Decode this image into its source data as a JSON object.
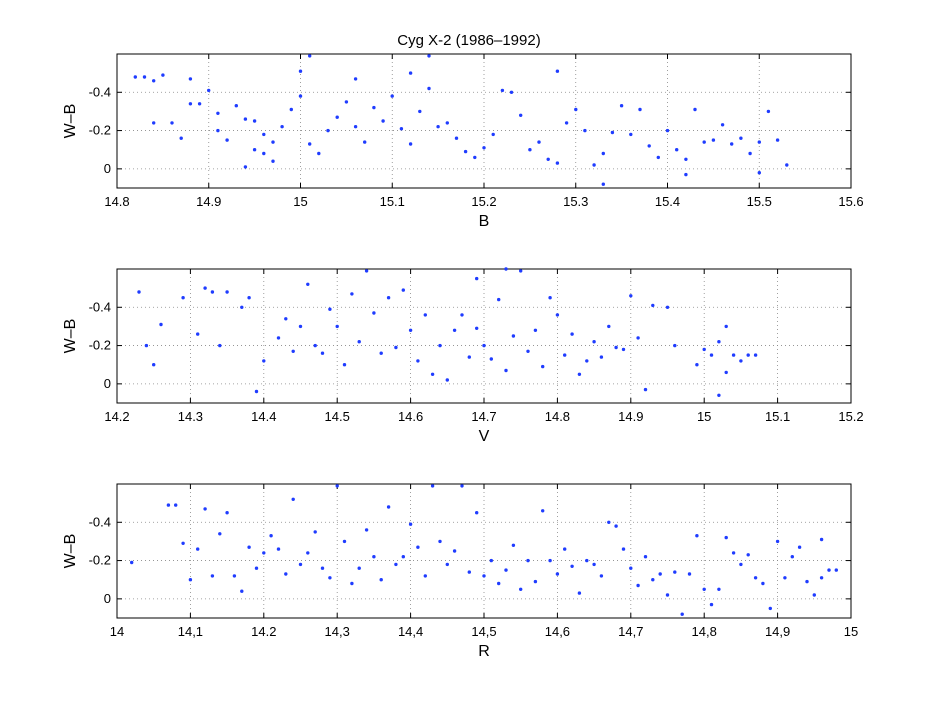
{
  "figure": {
    "title": "Cyg X-2 (1986–1992)"
  },
  "chart_data": [
    {
      "type": "scatter",
      "title": "Cyg X-2 (1986–1992)",
      "xlabel": "B",
      "ylabel": "W–B",
      "xlim": [
        14.8,
        15.6
      ],
      "ylim": [
        0.1,
        -0.6
      ],
      "y_axis_reversed": true,
      "grid": true,
      "marker_color": "#1f3cff",
      "xticks": [
        14.8,
        14.9,
        15.0,
        15.1,
        15.2,
        15.3,
        15.4,
        15.5,
        15.6
      ],
      "xtick_labels": [
        "14.8",
        "14.9",
        "15",
        "15.1",
        "15.2",
        "15.3",
        "15.4",
        "15.5",
        "15.6"
      ],
      "yticks": [
        -0.4,
        -0.2,
        0
      ],
      "ytick_labels": [
        "-0.4",
        "-0.2",
        "0"
      ],
      "points": [
        [
          14.82,
          -0.48
        ],
        [
          14.83,
          -0.48
        ],
        [
          14.84,
          -0.46
        ],
        [
          14.85,
          -0.49
        ],
        [
          14.84,
          -0.24
        ],
        [
          14.86,
          -0.24
        ],
        [
          14.87,
          -0.16
        ],
        [
          14.88,
          -0.34
        ],
        [
          14.89,
          -0.34
        ],
        [
          14.88,
          -0.47
        ],
        [
          14.9,
          -0.41
        ],
        [
          14.91,
          -0.2
        ],
        [
          14.91,
          -0.29
        ],
        [
          14.92,
          -0.15
        ],
        [
          14.93,
          -0.33
        ],
        [
          14.94,
          -0.26
        ],
        [
          14.95,
          -0.25
        ],
        [
          14.96,
          -0.18
        ],
        [
          14.97,
          -0.14
        ],
        [
          14.95,
          -0.1
        ],
        [
          14.96,
          -0.08
        ],
        [
          14.97,
          -0.04
        ],
        [
          14.98,
          -0.22
        ],
        [
          14.99,
          -0.31
        ],
        [
          15.0,
          -0.38
        ],
        [
          15.01,
          -0.13
        ],
        [
          15.02,
          -0.08
        ],
        [
          15.03,
          -0.2
        ],
        [
          15.04,
          -0.27
        ],
        [
          15.05,
          -0.35
        ],
        [
          15.06,
          -0.22
        ],
        [
          15.07,
          -0.14
        ],
        [
          15.08,
          -0.32
        ],
        [
          15.09,
          -0.25
        ],
        [
          15.1,
          -0.38
        ],
        [
          15.11,
          -0.21
        ],
        [
          15.12,
          -0.13
        ],
        [
          15.13,
          -0.3
        ],
        [
          15.14,
          -0.42
        ],
        [
          15.15,
          -0.22
        ],
        [
          15.16,
          -0.24
        ],
        [
          15.17,
          -0.16
        ],
        [
          15.18,
          -0.09
        ],
        [
          15.19,
          -0.06
        ],
        [
          15.2,
          -0.11
        ],
        [
          15.21,
          -0.18
        ],
        [
          15.22,
          -0.41
        ],
        [
          15.23,
          -0.4
        ],
        [
          15.24,
          -0.28
        ],
        [
          15.25,
          -0.1
        ],
        [
          15.26,
          -0.14
        ],
        [
          15.27,
          -0.05
        ],
        [
          15.28,
          -0.03
        ],
        [
          15.29,
          -0.24
        ],
        [
          15.3,
          -0.31
        ],
        [
          15.31,
          -0.2
        ],
        [
          15.32,
          -0.02
        ],
        [
          15.33,
          -0.08
        ],
        [
          15.34,
          -0.19
        ],
        [
          15.35,
          -0.33
        ],
        [
          15.36,
          -0.18
        ],
        [
          15.37,
          -0.31
        ],
        [
          15.38,
          -0.12
        ],
        [
          15.39,
          -0.06
        ],
        [
          15.4,
          -0.2
        ],
        [
          15.41,
          -0.1
        ],
        [
          15.42,
          -0.05
        ],
        [
          15.43,
          -0.31
        ],
        [
          15.44,
          -0.14
        ],
        [
          15.45,
          -0.15
        ],
        [
          15.46,
          -0.23
        ],
        [
          15.47,
          -0.13
        ],
        [
          15.48,
          -0.16
        ],
        [
          15.49,
          -0.08
        ],
        [
          15.5,
          -0.14
        ],
        [
          15.51,
          -0.3
        ],
        [
          15.52,
          -0.15
        ],
        [
          15.53,
          -0.02
        ],
        [
          14.94,
          -0.01
        ],
        [
          15.0,
          -0.51
        ],
        [
          15.01,
          -0.59
        ],
        [
          15.06,
          -0.47
        ],
        [
          15.12,
          -0.5
        ],
        [
          15.14,
          -0.59
        ],
        [
          15.28,
          -0.51
        ],
        [
          15.33,
          0.08
        ],
        [
          15.42,
          0.03
        ],
        [
          15.5,
          0.02
        ]
      ]
    },
    {
      "type": "scatter",
      "title": "",
      "xlabel": "V",
      "ylabel": "W–B",
      "xlim": [
        14.2,
        15.2
      ],
      "ylim": [
        0.1,
        -0.6
      ],
      "y_axis_reversed": true,
      "grid": true,
      "marker_color": "#1f3cff",
      "xticks": [
        14.2,
        14.3,
        14.4,
        14.5,
        14.6,
        14.7,
        14.8,
        14.9,
        15.0,
        15.1,
        15.2
      ],
      "xtick_labels": [
        "14.2",
        "14.3",
        "14.4",
        "14.5",
        "14.6",
        "14.7",
        "14.8",
        "14.9",
        "15",
        "15.1",
        "15.2"
      ],
      "yticks": [
        -0.4,
        -0.2,
        0
      ],
      "ytick_labels": [
        "-0.4",
        "-0.2",
        "0"
      ],
      "points": [
        [
          14.23,
          -0.48
        ],
        [
          14.24,
          -0.2
        ],
        [
          14.25,
          -0.1
        ],
        [
          14.26,
          -0.31
        ],
        [
          14.29,
          -0.45
        ],
        [
          14.31,
          -0.26
        ],
        [
          14.32,
          -0.5
        ],
        [
          14.33,
          -0.48
        ],
        [
          14.34,
          -0.2
        ],
        [
          14.35,
          -0.48
        ],
        [
          14.37,
          -0.4
        ],
        [
          14.38,
          -0.45
        ],
        [
          14.39,
          0.04
        ],
        [
          14.4,
          -0.12
        ],
        [
          14.42,
          -0.24
        ],
        [
          14.43,
          -0.34
        ],
        [
          14.44,
          -0.17
        ],
        [
          14.45,
          -0.3
        ],
        [
          14.46,
          -0.52
        ],
        [
          14.47,
          -0.2
        ],
        [
          14.48,
          -0.16
        ],
        [
          14.49,
          -0.39
        ],
        [
          14.5,
          -0.3
        ],
        [
          14.51,
          -0.1
        ],
        [
          14.52,
          -0.47
        ],
        [
          14.53,
          -0.22
        ],
        [
          14.54,
          -0.59
        ],
        [
          14.55,
          -0.37
        ],
        [
          14.56,
          -0.16
        ],
        [
          14.57,
          -0.45
        ],
        [
          14.58,
          -0.19
        ],
        [
          14.59,
          -0.49
        ],
        [
          14.6,
          -0.28
        ],
        [
          14.61,
          -0.12
        ],
        [
          14.62,
          -0.36
        ],
        [
          14.63,
          -0.05
        ],
        [
          14.64,
          -0.2
        ],
        [
          14.65,
          -0.02
        ],
        [
          14.66,
          -0.28
        ],
        [
          14.67,
          -0.36
        ],
        [
          14.68,
          -0.14
        ],
        [
          14.69,
          -0.29
        ],
        [
          14.7,
          -0.2
        ],
        [
          14.71,
          -0.13
        ],
        [
          14.72,
          -0.44
        ],
        [
          14.73,
          -0.07
        ],
        [
          14.74,
          -0.25
        ],
        [
          14.75,
          -0.59
        ],
        [
          14.76,
          -0.17
        ],
        [
          14.77,
          -0.28
        ],
        [
          14.78,
          -0.09
        ],
        [
          14.79,
          -0.45
        ],
        [
          14.8,
          -0.36
        ],
        [
          14.81,
          -0.15
        ],
        [
          14.82,
          -0.26
        ],
        [
          14.83,
          -0.05
        ],
        [
          14.84,
          -0.12
        ],
        [
          14.85,
          -0.22
        ],
        [
          14.86,
          -0.14
        ],
        [
          14.87,
          -0.3
        ],
        [
          14.88,
          -0.19
        ],
        [
          14.89,
          -0.18
        ],
        [
          14.9,
          -0.46
        ],
        [
          14.91,
          -0.24
        ],
        [
          14.92,
          0.03
        ],
        [
          14.93,
          -0.41
        ],
        [
          14.95,
          -0.4
        ],
        [
          14.96,
          -0.2
        ],
        [
          14.99,
          -0.1
        ],
        [
          15.0,
          -0.18
        ],
        [
          15.01,
          -0.15
        ],
        [
          15.02,
          -0.22
        ],
        [
          15.03,
          -0.06
        ],
        [
          15.04,
          -0.15
        ],
        [
          15.05,
          -0.12
        ],
        [
          15.06,
          -0.15
        ],
        [
          15.07,
          -0.15
        ],
        [
          15.02,
          0.06
        ],
        [
          15.03,
          -0.3
        ],
        [
          14.73,
          -0.6
        ],
        [
          14.69,
          -0.55
        ]
      ]
    },
    {
      "type": "scatter",
      "title": "",
      "xlabel": "R",
      "ylabel": "W–B",
      "xlim": [
        14.0,
        15.0
      ],
      "ylim": [
        0.1,
        -0.6
      ],
      "y_axis_reversed": true,
      "grid": true,
      "marker_color": "#1f3cff",
      "xticks": [
        14.0,
        14.1,
        14.2,
        14.3,
        14.4,
        14.5,
        14.6,
        14.7,
        14.8,
        14.9,
        15.0
      ],
      "xtick_labels": [
        "14",
        "14,1",
        "14.2",
        "14,3",
        "14,4",
        "14,5",
        "14,6",
        "14,7",
        "14,8",
        "14,9",
        "15"
      ],
      "yticks": [
        -0.4,
        -0.2,
        0
      ],
      "ytick_labels": [
        "-0.4",
        "-0.2",
        "0"
      ],
      "points": [
        [
          14.02,
          -0.19
        ],
        [
          14.07,
          -0.49
        ],
        [
          14.08,
          -0.49
        ],
        [
          14.09,
          -0.29
        ],
        [
          14.1,
          -0.1
        ],
        [
          14.11,
          -0.26
        ],
        [
          14.12,
          -0.47
        ],
        [
          14.13,
          -0.12
        ],
        [
          14.14,
          -0.34
        ],
        [
          14.15,
          -0.45
        ],
        [
          14.16,
          -0.12
        ],
        [
          14.17,
          -0.04
        ],
        [
          14.18,
          -0.27
        ],
        [
          14.19,
          -0.16
        ],
        [
          14.2,
          -0.24
        ],
        [
          14.21,
          -0.33
        ],
        [
          14.22,
          -0.26
        ],
        [
          14.23,
          -0.13
        ],
        [
          14.24,
          -0.52
        ],
        [
          14.25,
          -0.18
        ],
        [
          14.26,
          -0.24
        ],
        [
          14.27,
          -0.35
        ],
        [
          14.28,
          -0.16
        ],
        [
          14.29,
          -0.11
        ],
        [
          14.3,
          -0.59
        ],
        [
          14.31,
          -0.3
        ],
        [
          14.32,
          -0.08
        ],
        [
          14.33,
          -0.16
        ],
        [
          14.34,
          -0.36
        ],
        [
          14.35,
          -0.22
        ],
        [
          14.36,
          -0.1
        ],
        [
          14.37,
          -0.48
        ],
        [
          14.38,
          -0.18
        ],
        [
          14.39,
          -0.22
        ],
        [
          14.4,
          -0.39
        ],
        [
          14.41,
          -0.27
        ],
        [
          14.42,
          -0.12
        ],
        [
          14.43,
          -0.59
        ],
        [
          14.44,
          -0.3
        ],
        [
          14.45,
          -0.18
        ],
        [
          14.46,
          -0.25
        ],
        [
          14.47,
          -0.59
        ],
        [
          14.48,
          -0.14
        ],
        [
          14.49,
          -0.45
        ],
        [
          14.5,
          -0.12
        ],
        [
          14.51,
          -0.2
        ],
        [
          14.52,
          -0.08
        ],
        [
          14.53,
          -0.15
        ],
        [
          14.54,
          -0.28
        ],
        [
          14.55,
          -0.05
        ],
        [
          14.56,
          -0.2
        ],
        [
          14.57,
          -0.09
        ],
        [
          14.58,
          -0.46
        ],
        [
          14.59,
          -0.2
        ],
        [
          14.6,
          -0.13
        ],
        [
          14.61,
          -0.26
        ],
        [
          14.62,
          -0.17
        ],
        [
          14.63,
          -0.03
        ],
        [
          14.64,
          -0.2
        ],
        [
          14.65,
          -0.18
        ],
        [
          14.66,
          -0.12
        ],
        [
          14.67,
          -0.4
        ],
        [
          14.68,
          -0.38
        ],
        [
          14.69,
          -0.26
        ],
        [
          14.7,
          -0.16
        ],
        [
          14.71,
          -0.07
        ],
        [
          14.72,
          -0.22
        ],
        [
          14.73,
          -0.1
        ],
        [
          14.74,
          -0.13
        ],
        [
          14.75,
          -0.02
        ],
        [
          14.76,
          -0.14
        ],
        [
          14.77,
          0.08
        ],
        [
          14.78,
          -0.13
        ],
        [
          14.79,
          -0.33
        ],
        [
          14.8,
          -0.05
        ],
        [
          14.81,
          0.03
        ],
        [
          14.82,
          -0.05
        ],
        [
          14.83,
          -0.32
        ],
        [
          14.84,
          -0.24
        ],
        [
          14.85,
          -0.18
        ],
        [
          14.86,
          -0.23
        ],
        [
          14.87,
          -0.11
        ],
        [
          14.88,
          -0.08
        ],
        [
          14.89,
          0.05
        ],
        [
          14.9,
          -0.3
        ],
        [
          14.91,
          -0.11
        ],
        [
          14.92,
          -0.22
        ],
        [
          14.93,
          -0.27
        ],
        [
          14.94,
          -0.09
        ],
        [
          14.95,
          -0.02
        ],
        [
          14.96,
          -0.11
        ],
        [
          14.97,
          -0.15
        ],
        [
          14.98,
          -0.15
        ],
        [
          15.04,
          0.01
        ],
        [
          14.96,
          -0.31
        ]
      ]
    }
  ]
}
